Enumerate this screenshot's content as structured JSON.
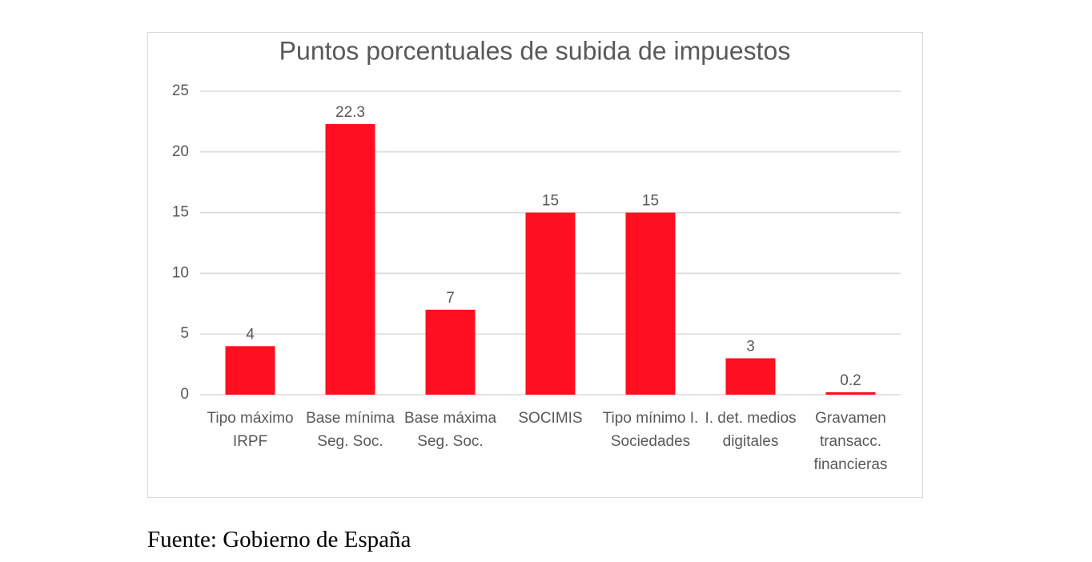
{
  "chart_data": {
    "type": "bar",
    "title": "Puntos porcentuales de subida de impuestos",
    "categories": [
      "Tipo máximo IRPF",
      "Base mínima Seg. Soc.",
      "Base máxima Seg. Soc.",
      "SOCIMIS",
      "Tipo mínimo I. Sociedades",
      "I. det. medios digitales",
      "Gravamen transacc. financieras"
    ],
    "values": [
      4,
      22.3,
      7,
      15,
      15,
      3,
      0.2
    ],
    "color": "#ff0f1f",
    "ylim": [
      0,
      25
    ],
    "yticks": [
      0,
      5,
      10,
      15,
      20,
      25
    ],
    "grid": true
  },
  "footer": "Fuente: Gobierno de España"
}
